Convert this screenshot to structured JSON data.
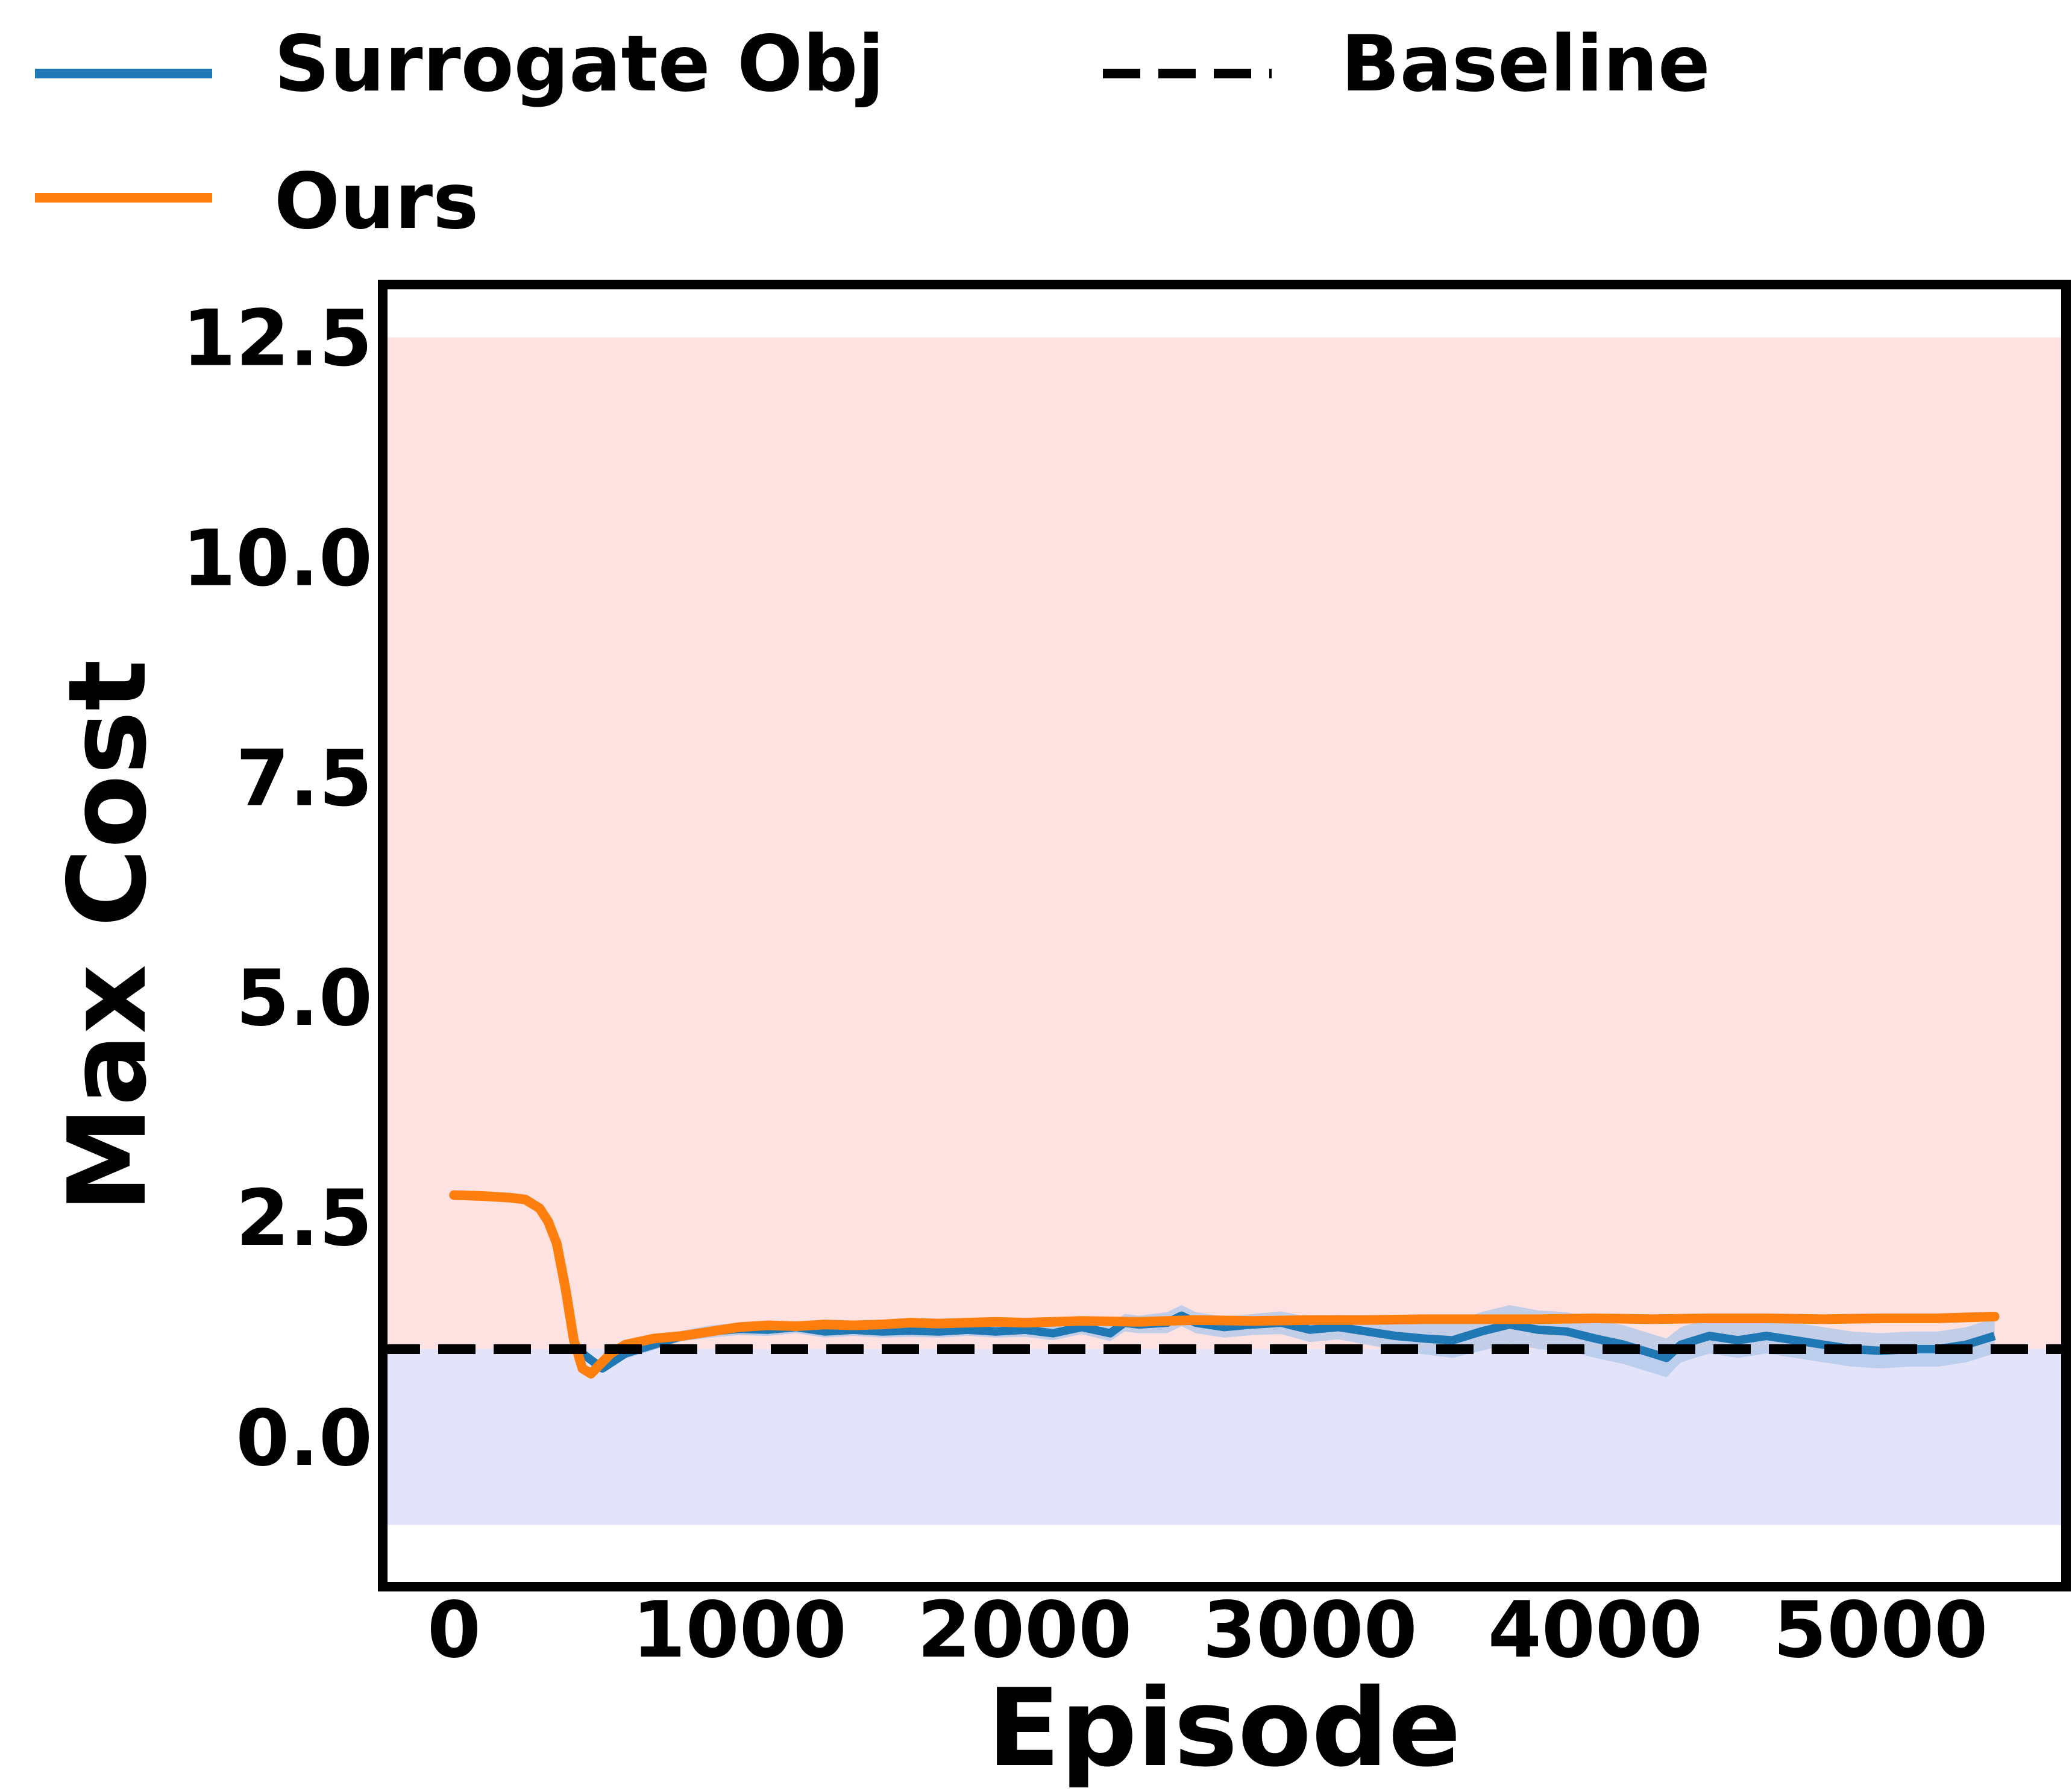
{
  "chart_data": {
    "type": "line",
    "title": "",
    "xlabel": "Episode",
    "ylabel": "Max Cost",
    "xlim": [
      -250,
      5650
    ],
    "ylim": [
      -1.7,
      13.1
    ],
    "xticks": [
      0,
      1000,
      2000,
      3000,
      4000,
      5000
    ],
    "xtick_labels": [
      "0",
      "1000",
      "2000",
      "3000",
      "4000",
      "5000"
    ],
    "yticks": [
      0.0,
      2.5,
      5.0,
      7.5,
      10.0,
      12.5
    ],
    "ytick_labels": [
      "0.0",
      "2.5",
      "5.0",
      "7.5",
      "10.0",
      "12.5"
    ],
    "grid": false,
    "legend_placement": "top (outside, above axes)",
    "bands": [
      {
        "label": "",
        "y_from": 1.0,
        "y_to": 12.5,
        "color": "#fde2e1"
      },
      {
        "label": "",
        "y_from": -1.0,
        "y_to": 1.0,
        "color": "#e3e3f9"
      }
    ],
    "baseline": {
      "name": "Baseline",
      "y": 1.0,
      "color": "#000000",
      "style": "dashed"
    },
    "series": [
      {
        "name": "Surrogate Obj",
        "color": "#1f77b4",
        "band_color": "#aec7e8",
        "x": [
          450,
          520,
          600,
          700,
          800,
          900,
          1000,
          1100,
          1200,
          1300,
          1400,
          1500,
          1600,
          1700,
          1800,
          1900,
          2000,
          2100,
          2200,
          2300,
          2350,
          2400,
          2500,
          2550,
          2600,
          2700,
          2800,
          2900,
          3000,
          3100,
          3200,
          3300,
          3400,
          3500,
          3600,
          3700,
          3800,
          3900,
          4000,
          4100,
          4200,
          4250,
          4300,
          4400,
          4500,
          4600,
          4700,
          4800,
          4900,
          5000,
          5100,
          5200,
          5300,
          5400
        ],
        "y": [
          0.95,
          0.78,
          0.95,
          1.05,
          1.15,
          1.2,
          1.23,
          1.22,
          1.25,
          1.2,
          1.22,
          1.2,
          1.21,
          1.2,
          1.22,
          1.2,
          1.22,
          1.18,
          1.25,
          1.18,
          1.3,
          1.28,
          1.3,
          1.38,
          1.3,
          1.25,
          1.28,
          1.3,
          1.22,
          1.25,
          1.2,
          1.15,
          1.12,
          1.1,
          1.2,
          1.28,
          1.22,
          1.2,
          1.12,
          1.05,
          0.95,
          0.9,
          1.05,
          1.15,
          1.1,
          1.15,
          1.1,
          1.05,
          1.0,
          0.98,
          1.0,
          1.0,
          1.05,
          1.15
        ],
        "spread": [
          0.05,
          0.05,
          0.06,
          0.06,
          0.06,
          0.07,
          0.07,
          0.07,
          0.07,
          0.07,
          0.07,
          0.07,
          0.07,
          0.07,
          0.07,
          0.07,
          0.08,
          0.08,
          0.08,
          0.09,
          0.1,
          0.1,
          0.12,
          0.12,
          0.12,
          0.12,
          0.12,
          0.13,
          0.14,
          0.14,
          0.15,
          0.16,
          0.18,
          0.2,
          0.22,
          0.22,
          0.22,
          0.22,
          0.22,
          0.22,
          0.22,
          0.22,
          0.2,
          0.2,
          0.2,
          0.2,
          0.2,
          0.2,
          0.2,
          0.2,
          0.2,
          0.2,
          0.2,
          0.2
        ]
      },
      {
        "name": "Ours",
        "color": "#ff7f0e",
        "x": [
          0,
          100,
          200,
          250,
          300,
          330,
          360,
          390,
          420,
          450,
          480,
          510,
          550,
          600,
          700,
          800,
          900,
          1000,
          1100,
          1200,
          1300,
          1400,
          1500,
          1600,
          1700,
          1800,
          1900,
          2000,
          2200,
          2400,
          2600,
          2800,
          3000,
          3200,
          3400,
          3600,
          3800,
          4000,
          4200,
          4400,
          4600,
          4800,
          5000,
          5200,
          5400
        ],
        "y": [
          2.75,
          2.74,
          2.72,
          2.7,
          2.6,
          2.45,
          2.2,
          1.7,
          1.1,
          0.78,
          0.72,
          0.82,
          0.95,
          1.05,
          1.12,
          1.15,
          1.2,
          1.25,
          1.27,
          1.26,
          1.28,
          1.27,
          1.28,
          1.3,
          1.29,
          1.3,
          1.31,
          1.3,
          1.32,
          1.31,
          1.33,
          1.32,
          1.33,
          1.33,
          1.34,
          1.34,
          1.34,
          1.35,
          1.34,
          1.35,
          1.35,
          1.34,
          1.35,
          1.35,
          1.37
        ]
      }
    ]
  }
}
